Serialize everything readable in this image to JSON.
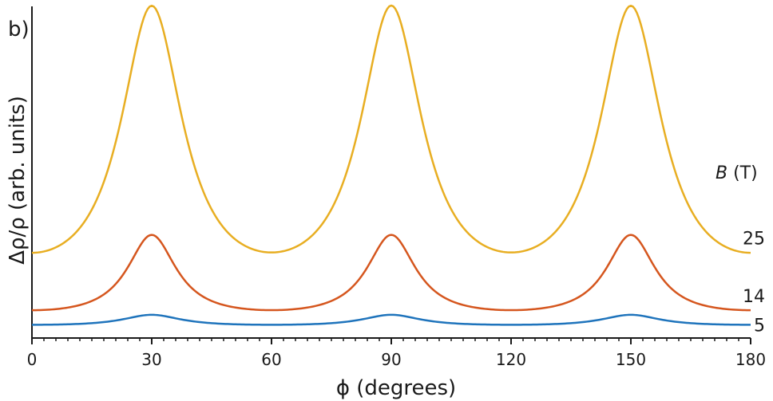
{
  "panel_label": "b)",
  "chart_data": {
    "type": "line",
    "title": "",
    "xlabel": "ϕ (degrees)",
    "ylabel": "Δρ/ρ (arb. units)",
    "xlim": [
      0,
      180
    ],
    "ylim": [
      0,
      1
    ],
    "x_ticks": [
      0,
      30,
      60,
      90,
      120,
      150,
      180
    ],
    "x_tick_labels": [
      "0",
      "30",
      "60",
      "90",
      "120",
      "150",
      "180"
    ],
    "x_minor_step": 3,
    "grid": false,
    "legend_title": {
      "italic": "B",
      "rest": " (T)"
    },
    "series": [
      {
        "name": "25",
        "color": "#E8AE22",
        "baseline": 0.258,
        "amplitude": 0.744,
        "gamma": 9.5
      },
      {
        "name": "14",
        "color": "#D5561E",
        "baseline": 0.084,
        "amplitude": 0.227,
        "gamma": 7.5
      },
      {
        "name": "5",
        "color": "#1F74BC",
        "baseline": 0.04,
        "amplitude": 0.03,
        "gamma": 9.0
      }
    ],
    "peaks_at": [
      30,
      90,
      150
    ]
  }
}
